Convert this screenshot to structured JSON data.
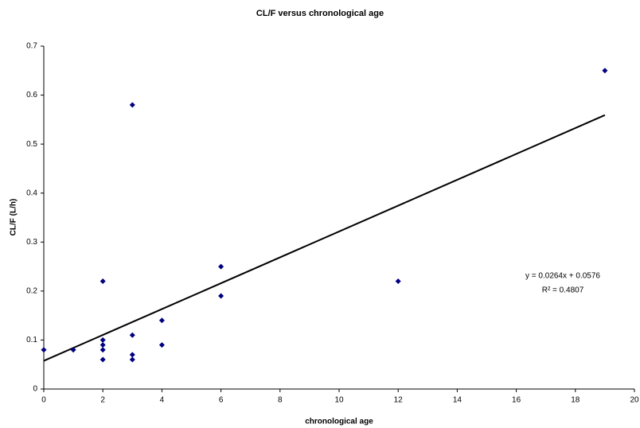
{
  "chart_data": {
    "type": "scatter",
    "title": "CL/F versus chronological age",
    "x_label": "chronological age",
    "y_label": "CL/F (L/h)",
    "x": [
      0,
      1,
      2,
      2,
      2,
      2,
      2,
      3,
      3,
      3,
      3,
      4,
      4,
      6,
      6,
      12,
      19
    ],
    "values": [
      0.08,
      0.08,
      0.22,
      0.1,
      0.09,
      0.08,
      0.06,
      0.58,
      0.11,
      0.07,
      0.06,
      0.14,
      0.09,
      0.25,
      0.19,
      0.22,
      0.65
    ],
    "color": "#000080",
    "xlim": [
      0,
      20
    ],
    "xticks": [
      0,
      2,
      4,
      6,
      8,
      10,
      12,
      14,
      16,
      18,
      20
    ],
    "ylim": [
      0,
      0.7
    ],
    "yticks": [
      0,
      0.1,
      0.2,
      0.3,
      0.4,
      0.5,
      0.6,
      0.7
    ],
    "grid": false,
    "trendline": {
      "slope": 0.0264,
      "intercept": 0.0576,
      "equation": "y = 0.0264x + 0.0576",
      "r2": "R² = 0.4807"
    }
  }
}
